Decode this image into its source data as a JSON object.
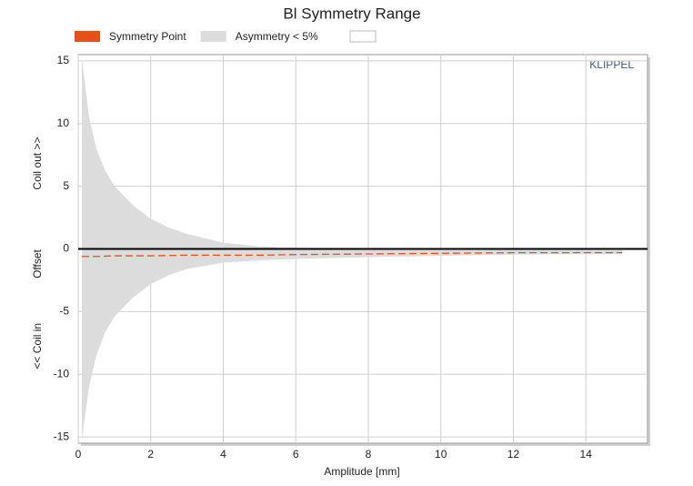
{
  "chart_data": {
    "type": "area",
    "title": "Bl Symmetry Range",
    "x_label": "Amplitude [mm]",
    "y_label": [
      "<< Coil in",
      "Offset",
      "Coil out >>"
    ],
    "watermark": "KLIPPEL",
    "xlim": [
      0,
      15.7
    ],
    "xticks": [
      0,
      2,
      4,
      6,
      8,
      10,
      12,
      14
    ],
    "ylim": [
      -15.5,
      15.5
    ],
    "yticks": [
      -15,
      -10,
      -5,
      0,
      5,
      10,
      15
    ],
    "grid": true,
    "series": [
      {
        "name": "Symmetry Point",
        "color": "#e8501a",
        "linestyle": "dashed",
        "x": [
          0.1,
          0.5,
          1,
          2,
          3,
          4,
          5,
          6,
          8,
          10,
          12,
          15
        ],
        "values": [
          -0.6,
          -0.6,
          -0.55,
          -0.55,
          -0.5,
          -0.5,
          -0.5,
          -0.45,
          -0.4,
          -0.35,
          -0.3,
          -0.3
        ]
      },
      {
        "name": "Asymmetry < 5%",
        "color": "#dcdcdc",
        "x": [
          0.1,
          0.3,
          0.5,
          0.75,
          1,
          1.5,
          2,
          2.5,
          3,
          4,
          5,
          6,
          8,
          10,
          12,
          15
        ],
        "upper": [
          15.2,
          10.5,
          8,
          6.2,
          5,
          3.5,
          2.4,
          1.7,
          1.2,
          0.5,
          0.2,
          0.1,
          0,
          0,
          -0.05,
          -0.1
        ],
        "lower": [
          -15.2,
          -11,
          -8.5,
          -6.6,
          -5.4,
          -3.9,
          -2.8,
          -2.1,
          -1.6,
          -1.1,
          -0.9,
          -0.8,
          -0.65,
          -0.55,
          -0.45,
          -0.4
        ]
      }
    ]
  }
}
